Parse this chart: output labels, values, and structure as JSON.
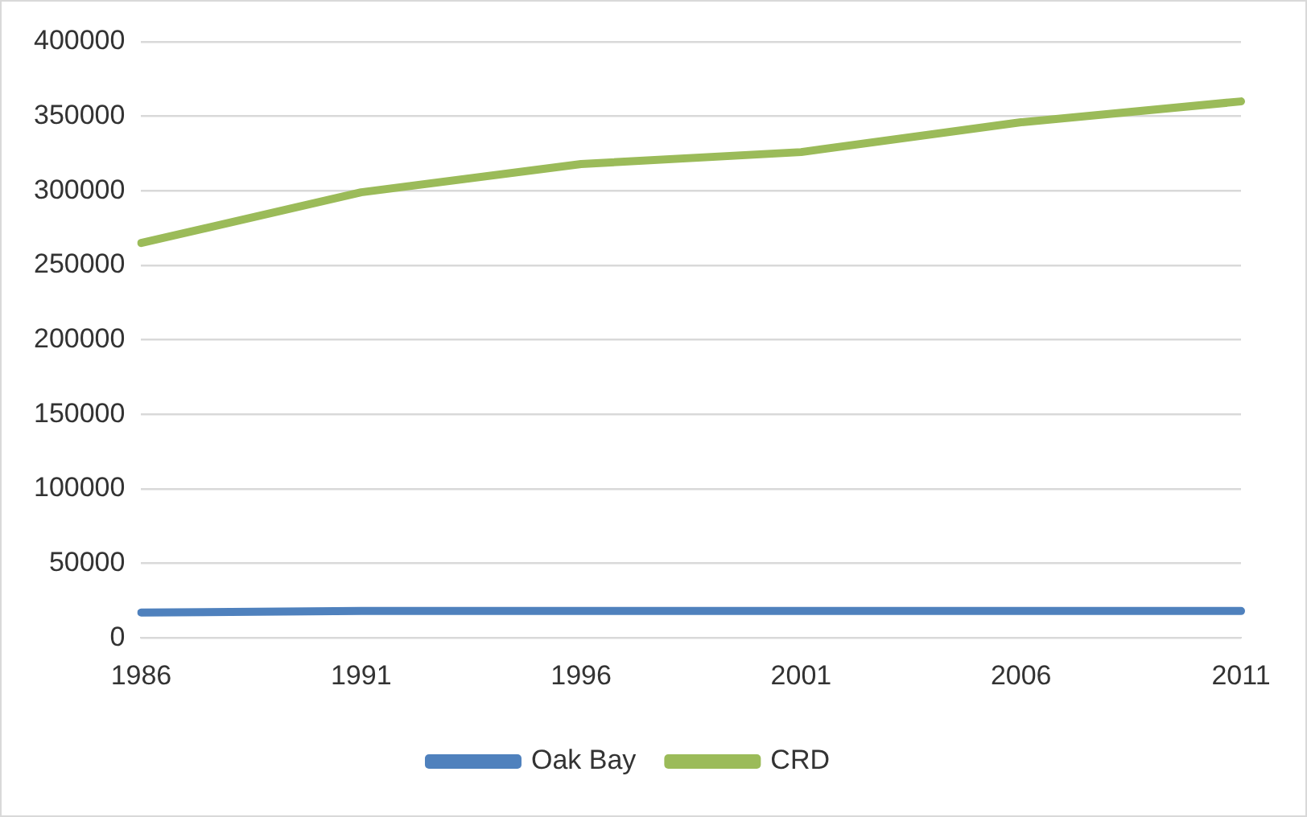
{
  "chart_data": {
    "type": "line",
    "categories": [
      "1986",
      "1991",
      "1996",
      "2001",
      "2006",
      "2011"
    ],
    "series": [
      {
        "name": "Oak Bay",
        "color": "#4f81bd",
        "values": [
          17000,
          18000,
          18000,
          18000,
          18000,
          18000
        ]
      },
      {
        "name": "CRD",
        "color": "#9bbb59",
        "values": [
          265000,
          299000,
          318000,
          326000,
          346000,
          360000
        ]
      }
    ],
    "ylim": [
      0,
      400000
    ],
    "yticks": [
      0,
      50000,
      100000,
      150000,
      200000,
      250000,
      300000,
      350000,
      400000
    ],
    "grid": "y",
    "legend": "bottom",
    "marker": "none",
    "line_style": "solid"
  }
}
